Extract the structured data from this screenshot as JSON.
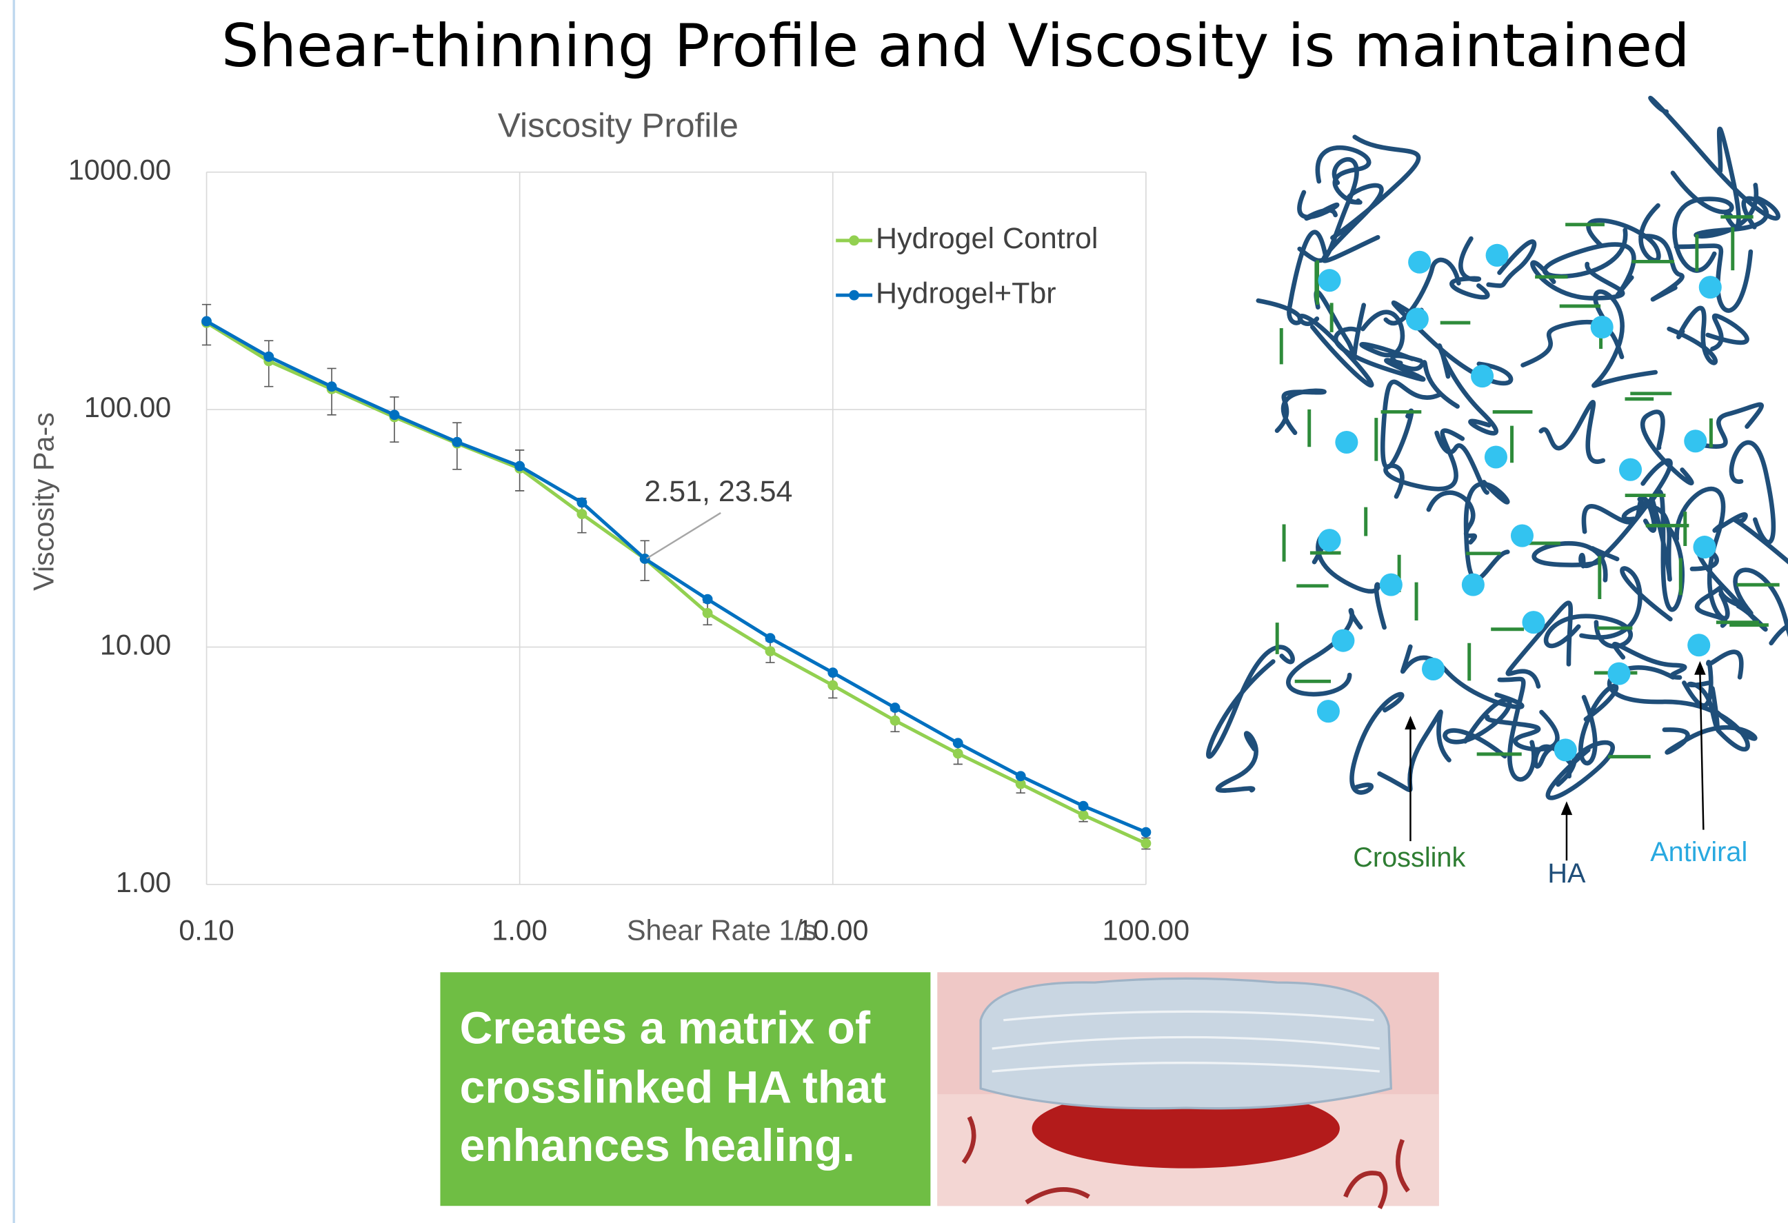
{
  "title": "Shear-thinning Profile and Viscosity is maintained",
  "chart_data": {
    "type": "line",
    "title": "Viscosity Profile",
    "x_label": "Shear Rate 1/s",
    "y_label": "Viscosity Pa-s",
    "x": [
      0.1,
      0.158,
      0.251,
      0.398,
      0.631,
      1,
      1.58,
      2.51,
      3.98,
      6.31,
      10,
      15.8,
      25.1,
      39.8,
      63.1,
      100
    ],
    "series": [
      {
        "name": "Hydrogel Control",
        "color": "#92d050",
        "values": [
          232,
          160,
          122,
          93,
          72,
          56.5,
          36.3,
          23.54,
          13.9,
          9.6,
          6.9,
          4.9,
          3.56,
          2.65,
          1.96,
          1.49
        ],
        "errors": [
          45,
          35,
          27,
          20,
          16,
          11,
          6,
          4.5,
          1.5,
          1.0,
          0.8,
          0.5,
          0.35,
          0.22,
          0.12,
          0.08
        ]
      },
      {
        "name": "Hydrogel+Tbr",
        "color": "#0070c0",
        "values": [
          235.5,
          167,
          125,
          95,
          73,
          57.8,
          40.6,
          23.54,
          15.9,
          10.9,
          7.8,
          5.55,
          3.94,
          2.86,
          2.14,
          1.66
        ]
      }
    ],
    "annotation": "2.51, 23.54",
    "xlog": true,
    "ylog": true,
    "grid": true,
    "legend": "top-right",
    "xlim": [
      0.1,
      100
    ],
    "ylim": [
      1,
      1000
    ],
    "xticks": [
      {
        "value": 0.1,
        "label": "0.10"
      },
      {
        "value": 1,
        "label": "1.00"
      },
      {
        "value": 10,
        "label": "10.00"
      },
      {
        "value": 100,
        "label": "100.00"
      }
    ],
    "yticks": [
      {
        "value": 1,
        "label": "1.00"
      },
      {
        "value": 10,
        "label": "10.00"
      },
      {
        "value": 100,
        "label": "100.00"
      },
      {
        "value": 1000,
        "label": "1000.00"
      }
    ]
  },
  "diagram": {
    "labels": [
      "Crosslink",
      "HA",
      "Antiviral"
    ]
  },
  "caption": {
    "lines": [
      "Creates a matrix of",
      "crosslinked HA that",
      "enhances healing."
    ]
  }
}
